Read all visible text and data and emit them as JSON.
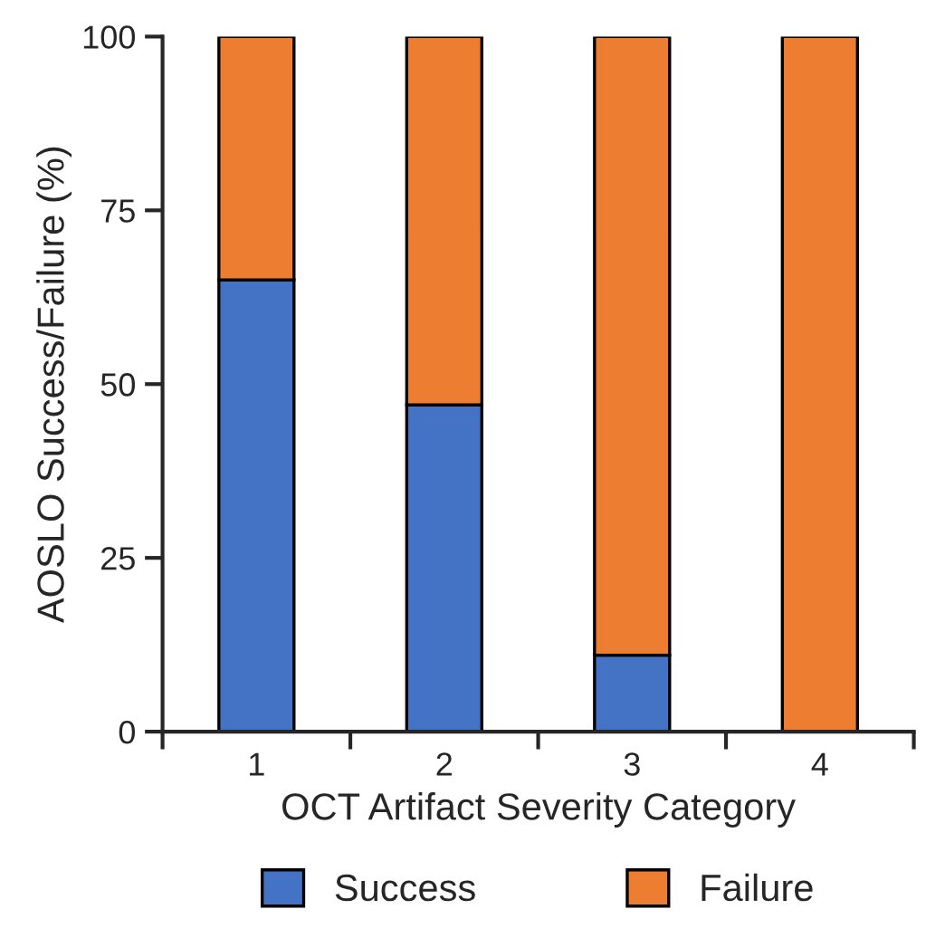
{
  "chart_data": {
    "type": "bar",
    "stacked": true,
    "xlabel": "OCT Artifact Severity Category",
    "ylabel": "AOSLO Success/Failure (%)",
    "categories": [
      "1",
      "2",
      "3",
      "4"
    ],
    "series": [
      {
        "name": "Success",
        "color": "#4472c4",
        "values": [
          65,
          47,
          11,
          0
        ]
      },
      {
        "name": "Failure",
        "color": "#ed7d31",
        "values": [
          35,
          53,
          89,
          100
        ]
      }
    ],
    "ylim": [
      0,
      100
    ],
    "yticks": [
      0,
      25,
      50,
      75,
      100
    ],
    "grid": false,
    "legend": "bottom"
  }
}
